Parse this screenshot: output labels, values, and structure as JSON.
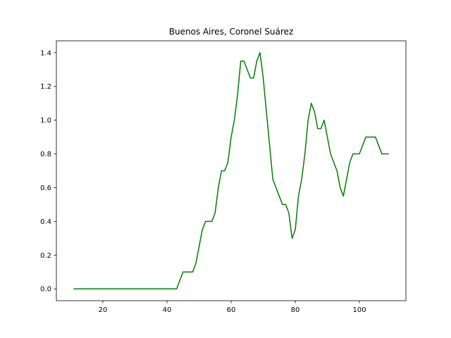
{
  "chart_data": {
    "type": "line",
    "title": "Buenos Aires, Coronel Suárez",
    "xlabel": "",
    "ylabel": "",
    "xlim": [
      5.5,
      114.5
    ],
    "ylim": [
      -0.07,
      1.47
    ],
    "xticks": [
      20,
      40,
      60,
      80,
      100
    ],
    "yticks": [
      0.0,
      0.2,
      0.4,
      0.6,
      0.8,
      1.0,
      1.2,
      1.4
    ],
    "ytick_labels": [
      "0.0",
      "0.2",
      "0.4",
      "0.6",
      "0.8",
      "1.0",
      "1.2",
      "1.4"
    ],
    "grid": false,
    "series": [
      {
        "color": "#008000",
        "x": [
          11,
          12,
          13,
          14,
          15,
          16,
          17,
          18,
          19,
          20,
          21,
          22,
          23,
          24,
          25,
          26,
          27,
          28,
          29,
          30,
          31,
          32,
          33,
          34,
          35,
          36,
          37,
          38,
          39,
          40,
          41,
          42,
          43,
          44,
          45,
          46,
          47,
          48,
          49,
          50,
          51,
          52,
          53,
          54,
          55,
          56,
          57,
          58,
          59,
          60,
          61,
          62,
          63,
          64,
          65,
          66,
          67,
          68,
          69,
          70,
          71,
          72,
          73,
          74,
          75,
          76,
          77,
          78,
          79,
          80,
          81,
          82,
          83,
          84,
          85,
          86,
          87,
          88,
          89,
          90,
          91,
          92,
          93,
          94,
          95,
          96,
          97,
          98,
          99,
          100,
          101,
          102,
          103,
          104,
          105,
          106,
          107,
          108,
          109
        ],
        "y": [
          0,
          0,
          0,
          0,
          0,
          0,
          0,
          0,
          0,
          0,
          0,
          0,
          0,
          0,
          0,
          0,
          0,
          0,
          0,
          0,
          0,
          0,
          0,
          0,
          0,
          0,
          0,
          0,
          0,
          0,
          0,
          0,
          0,
          0.05,
          0.1,
          0.1,
          0.1,
          0.1,
          0.15,
          0.25,
          0.35,
          0.4,
          0.4,
          0.4,
          0.45,
          0.6,
          0.7,
          0.7,
          0.75,
          0.9,
          1.0,
          1.15,
          1.35,
          1.35,
          1.3,
          1.25,
          1.25,
          1.35,
          1.4,
          1.25,
          1.05,
          0.85,
          0.65,
          0.6,
          0.55,
          0.5,
          0.5,
          0.45,
          0.3,
          0.35,
          0.55,
          0.65,
          0.8,
          1.0,
          1.1,
          1.05,
          0.95,
          0.95,
          1.0,
          0.9,
          0.8,
          0.75,
          0.7,
          0.6,
          0.55,
          0.65,
          0.75,
          0.8,
          0.8,
          0.8,
          0.85,
          0.9,
          0.9,
          0.9,
          0.9,
          0.85,
          0.8,
          0.8,
          0.8
        ]
      }
    ]
  }
}
